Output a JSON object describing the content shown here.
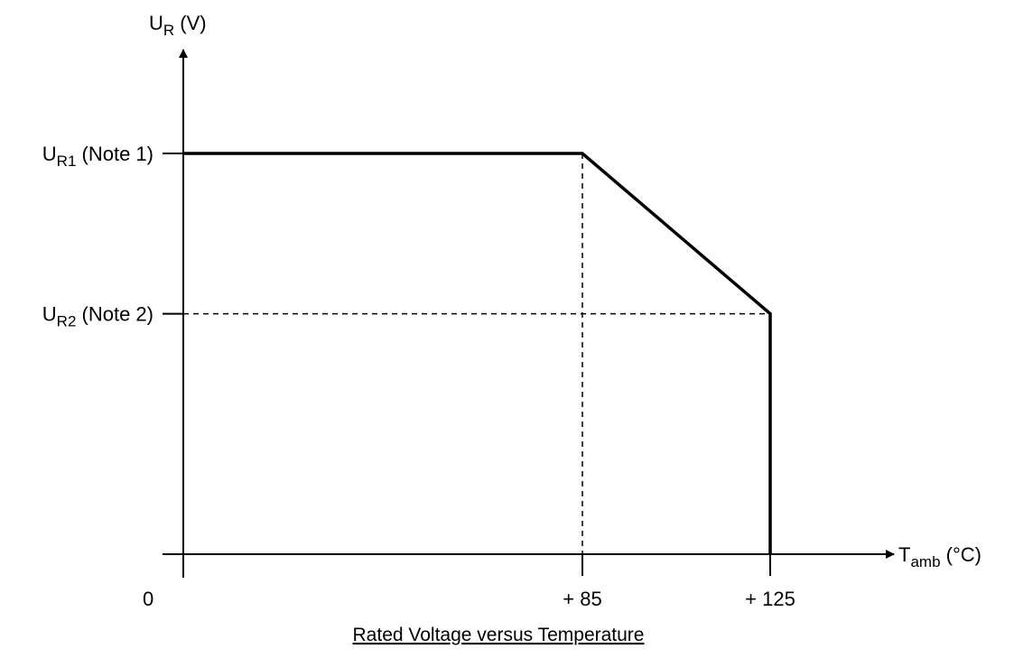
{
  "chart_data": {
    "type": "line",
    "title": "Rated Voltage versus Temperature",
    "y_axis": {
      "label_main": "U",
      "label_sub": "R",
      "label_unit": " (V)"
    },
    "x_axis": {
      "label_main": "T",
      "label_sub": "amb",
      "label_unit": " (°C)",
      "origin_label": "0",
      "ticks": [
        {
          "value": 85,
          "label": "+ 85"
        },
        {
          "value": 125,
          "label": "+ 125"
        }
      ]
    },
    "y_levels": [
      {
        "key": "UR1",
        "value": 1,
        "main": "U",
        "sub": "R1",
        "rest": " (Note 1)"
      },
      {
        "key": "UR2",
        "value": 0.6,
        "main": "U",
        "sub": "R2",
        "rest": " (Note 2)"
      }
    ],
    "series": [
      {
        "points": [
          {
            "x": 0,
            "y": 1
          },
          {
            "x": 85,
            "y": 1
          },
          {
            "x": 125,
            "y": 0.6
          },
          {
            "x": 125,
            "y": 0
          }
        ]
      }
    ],
    "guide_lines": [
      {
        "from": {
          "x": 85,
          "y": 1
        },
        "to": {
          "x": 85,
          "y": 0
        }
      },
      {
        "from": {
          "x": 0,
          "y": 0.6
        },
        "to": {
          "x": 125,
          "y": 0.6
        }
      }
    ],
    "xlim": [
      0,
      125
    ],
    "ylim": [
      0,
      1
    ],
    "colors": {
      "line": "#000000",
      "background": "#ffffff"
    }
  }
}
